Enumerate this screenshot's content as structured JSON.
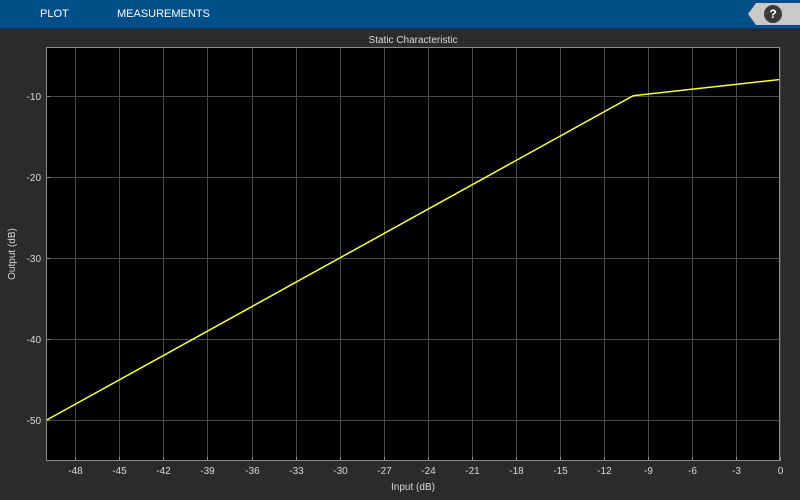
{
  "toolstrip": {
    "tabs": [
      {
        "label": "PLOT"
      },
      {
        "label": "MEASUREMENTS"
      }
    ],
    "help_label": "?"
  },
  "colors": {
    "background": "#2b2b2b",
    "axes_background": "#000000",
    "toolstrip": "#004f8b",
    "line": "#ffff33",
    "grid": "#4a4a4a",
    "text": "#d8d8d8"
  },
  "icons": {
    "help": "question-mark-icon"
  },
  "chart_data": {
    "type": "line",
    "title": "Static Characteristic",
    "xlabel": "Input (dB)",
    "ylabel": "Output (dB)",
    "xlim": [
      -50,
      0
    ],
    "ylim": [
      -55,
      -4
    ],
    "xticks": [
      -48,
      -45,
      -42,
      -39,
      -36,
      -33,
      -30,
      -27,
      -24,
      -21,
      -18,
      -15,
      -12,
      -9,
      -6,
      -3,
      0
    ],
    "yticks": [
      -50,
      -40,
      -30,
      -20,
      -10
    ],
    "grid": true,
    "series": [
      {
        "x": [
          -50,
          -10,
          0
        ],
        "y": [
          -50,
          -10,
          -8
        ],
        "color": "#ffff33"
      }
    ]
  }
}
